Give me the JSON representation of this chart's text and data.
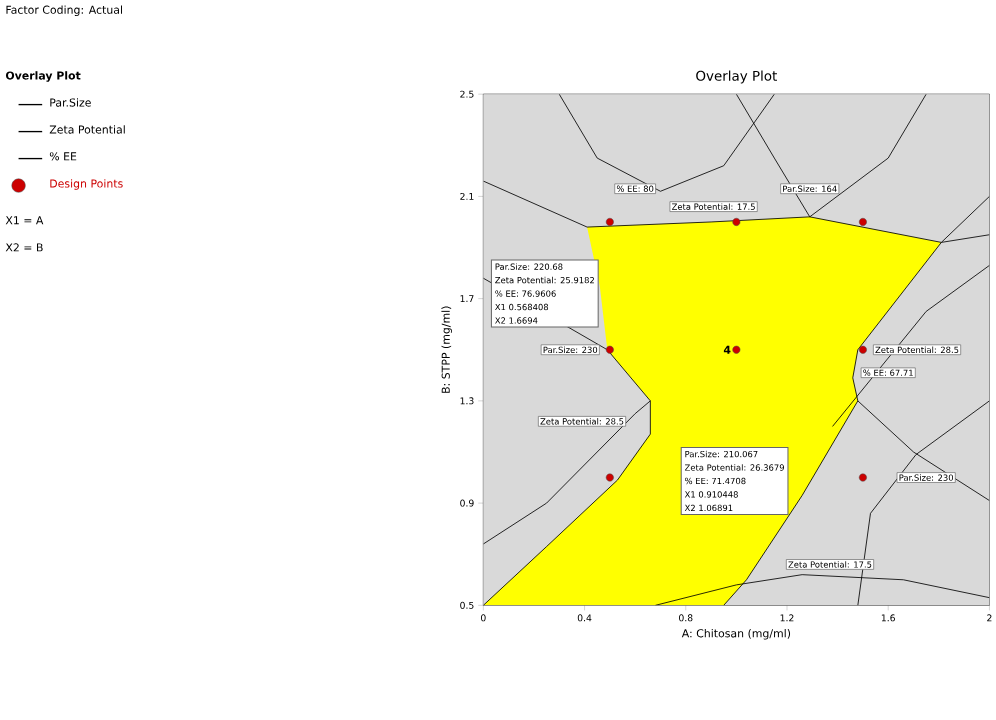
{
  "chart_data": {
    "type": "line",
    "title": "Overlay Plot",
    "xlabel": "A: Chitosan (mg/ml)",
    "ylabel": "B: STPP (mg/ml)",
    "legend_title": "Overlay Plot",
    "legend": "left",
    "xlim": [
      0,
      2
    ],
    "xticks": [
      0,
      0.4,
      0.8,
      1.2,
      1.6,
      2
    ],
    "ylim": [
      0.5,
      2.5
    ],
    "yticks": [
      0.5,
      0.9,
      1.3,
      1.7,
      2.1,
      2.5
    ],
    "series": [
      {
        "type": "area",
        "color": "#ffff00",
        "x": [
          0,
          0.68,
          0.95,
          1.04,
          1.26,
          1.48,
          1.46,
          1.48,
          1.81,
          1.29,
          0.9,
          0.41,
          0.46,
          0.49,
          0.66,
          0.66,
          0.53,
          0.25
        ],
        "values": [
          0.5,
          0.5,
          0.5,
          0.6,
          0.93,
          1.3,
          1.39,
          1.5,
          1.92,
          2.02,
          2.0,
          1.98,
          1.75,
          1.5,
          1.3,
          1.17,
          0.99,
          0.73
        ]
      },
      {
        "name": "Par.Size",
        "color": "#000000",
        "x": [
          0,
          0.49,
          0.66,
          0.66,
          0.53,
          0.25,
          0,
          null,
          1.48,
          1.53,
          1.71,
          2,
          null,
          1.0,
          1.15,
          1.29,
          1.6,
          1.75
        ],
        "values": [
          1.78,
          1.5,
          1.3,
          1.17,
          0.99,
          0.73,
          0.5,
          null,
          0.5,
          0.86,
          1.09,
          1.3,
          null,
          2.5,
          2.25,
          2.02,
          2.25,
          2.5
        ]
      },
      {
        "name": "Zeta Potential",
        "color": "#000000",
        "x": [
          0,
          0.41,
          0.9,
          1.29,
          1.81,
          2,
          null,
          0.68,
          1.0,
          1.26,
          1.66,
          2,
          null,
          0,
          0.25,
          0.45,
          0.6,
          0.66,
          null,
          0.95,
          1.04,
          1.26,
          1.48,
          1.46,
          1.48,
          1.81,
          2
        ],
        "values": [
          2.16,
          1.98,
          2.0,
          2.02,
          1.92,
          1.95,
          null,
          0.5,
          0.58,
          0.62,
          0.6,
          0.53,
          null,
          0.74,
          0.9,
          1.1,
          1.25,
          1.3,
          null,
          0.5,
          0.6,
          0.93,
          1.3,
          1.39,
          1.5,
          1.92,
          2.1
        ]
      },
      {
        "name": "% EE",
        "color": "#000000",
        "x": [
          0.3,
          0.45,
          0.7,
          0.95,
          1.15,
          null,
          1.38,
          1.75,
          2,
          null,
          1.48,
          1.7,
          2
        ],
        "values": [
          2.5,
          2.25,
          2.12,
          2.22,
          2.5,
          null,
          1.2,
          1.65,
          1.83,
          null,
          1.3,
          1.1,
          0.91
        ]
      },
      {
        "name": "Design Points",
        "type": "scatter",
        "marker": "circle",
        "color": "#cc0000",
        "x": [
          0.5,
          1,
          1.5,
          0.5,
          1,
          1.5,
          0.5,
          1.5
        ],
        "values": [
          2,
          2,
          2,
          1.5,
          1.5,
          1.5,
          1,
          1
        ]
      }
    ],
    "annotations": [
      "Factor Coding: Actual",
      "X1 = A",
      "X2 = B",
      "% EE: 80",
      "Par.Size: 164",
      "Zeta Potential: 17.5",
      "Par.Size: 230",
      "Zeta Potential: 28.5",
      "% EE: 67.71",
      "Zeta Potential: 28.5",
      "Par.Size: 230",
      "Zeta Potential: 17.5",
      "Par.Size:   220.68",
      "Zeta Potential:   25.9182",
      "% EE:   76.9606",
      "X1   0.568408",
      "X2   1.6694",
      "Par.Size:   210.067",
      "Zeta Potential:   26.3679",
      "% EE:   71.4708",
      "X1   0.910448",
      "X2   1.06891",
      {
        "text": "4",
        "x": 1,
        "y": 1.5
      }
    ]
  }
}
